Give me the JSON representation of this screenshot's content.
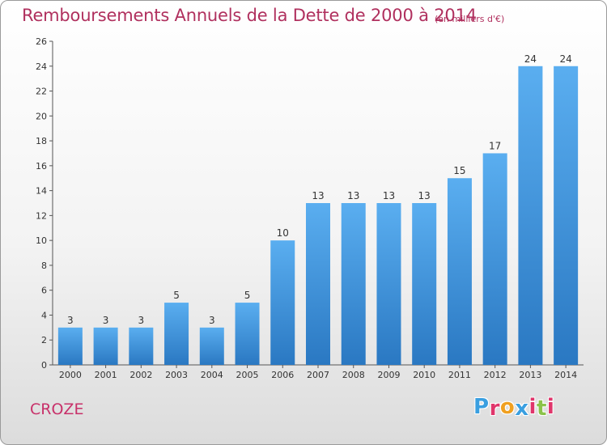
{
  "chart_data": {
    "type": "bar",
    "title": "Remboursements Annuels de la Dette de 2000 à 2014",
    "unit_label": "(en milliers d'€)",
    "categories": [
      "2000",
      "2001",
      "2002",
      "2003",
      "2004",
      "2005",
      "2006",
      "2007",
      "2008",
      "2009",
      "2010",
      "2011",
      "2012",
      "2013",
      "2014"
    ],
    "values": [
      3,
      3,
      3,
      5,
      3,
      5,
      10,
      13,
      13,
      13,
      13,
      15,
      17,
      24,
      24
    ],
    "ylim": [
      0,
      26
    ],
    "yticks": [
      0,
      2,
      4,
      6,
      8,
      10,
      12,
      14,
      16,
      18,
      20,
      22,
      24,
      26
    ],
    "grid": false,
    "bar_color": "#4a9fe0",
    "bar_color_dark": "#2a78c2"
  },
  "footer": {
    "town": "CROZE",
    "logo_text": "Proxiti",
    "logo_colors": [
      "#3a9fe0",
      "#e0356b",
      "#f0a020",
      "#3a9fe0",
      "#e0356b",
      "#8bc34a",
      "#e0356b"
    ]
  }
}
